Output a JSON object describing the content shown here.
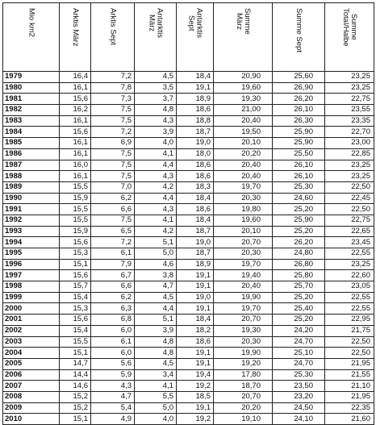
{
  "table": {
    "headers": [
      "Mio km2",
      "Arktis März",
      "Arktis Sept",
      "Antarktis\nMärz",
      "Antarktis\nSept",
      "Summe\nMärz",
      "Summe Sept",
      "Summe\nTotal/Halbe"
    ],
    "rows": [
      [
        "1979",
        "16,4",
        "7,2",
        "4,5",
        "18,4",
        "20,90",
        "25,60",
        "23,25"
      ],
      [
        "1980",
        "16,1",
        "7,8",
        "3,5",
        "19,1",
        "19,60",
        "26,90",
        "23,25"
      ],
      [
        "1981",
        "15,6",
        "7,3",
        "3,7",
        "18,9",
        "19,30",
        "26,20",
        "22,75"
      ],
      [
        "1982",
        "16,2",
        "7,5",
        "4,8",
        "18,6",
        "21,00",
        "26,10",
        "23,55"
      ],
      [
        "1983",
        "16,1",
        "7,5",
        "4,3",
        "18,8",
        "20,40",
        "26,30",
        "23,35"
      ],
      [
        "1984",
        "15,6",
        "7,2",
        "3,9",
        "18,7",
        "19,50",
        "25,90",
        "22,70"
      ],
      [
        "1985",
        "16,1",
        "6,9",
        "4,0",
        "19,0",
        "20,10",
        "25,90",
        "23,00"
      ],
      [
        "1986",
        "16,1",
        "7,5",
        "4,1",
        "18,0",
        "20,20",
        "25,50",
        "22,85"
      ],
      [
        "1987",
        "16,0",
        "7,5",
        "4,4",
        "18,6",
        "20,40",
        "26,10",
        "23,25"
      ],
      [
        "1988",
        "16,1",
        "7,5",
        "4,3",
        "18,6",
        "20,40",
        "26,10",
        "23,25"
      ],
      [
        "1989",
        "15,5",
        "7,0",
        "4,2",
        "18,3",
        "19,70",
        "25,30",
        "22,50"
      ],
      [
        "1990",
        "15,9",
        "6,2",
        "4,4",
        "18,4",
        "20,30",
        "24,60",
        "22,45"
      ],
      [
        "1991",
        "15,5",
        "6,6",
        "4,3",
        "18,6",
        "19,80",
        "25,20",
        "22,50"
      ],
      [
        "1992",
        "15,5",
        "7,5",
        "4,1",
        "18,4",
        "19,60",
        "25,90",
        "22,75"
      ],
      [
        "1993",
        "15,9",
        "6,5",
        "4,2",
        "18,7",
        "20,10",
        "25,20",
        "22,65"
      ],
      [
        "1994",
        "15,6",
        "7,2",
        "5,1",
        "19,0",
        "20,70",
        "26,20",
        "23,45"
      ],
      [
        "1995",
        "15,3",
        "6,1",
        "5,0",
        "18,7",
        "20,30",
        "24,80",
        "22,55"
      ],
      [
        "1996",
        "15,1",
        "7,9",
        "4,6",
        "18,9",
        "19,70",
        "26,80",
        "23,25"
      ],
      [
        "1997",
        "15,6",
        "6,7",
        "3,8",
        "19,1",
        "19,40",
        "25,80",
        "22,60"
      ],
      [
        "1998",
        "15,7",
        "6,6",
        "4,7",
        "19,1",
        "20,40",
        "25,70",
        "23,05"
      ],
      [
        "1999",
        "15,4",
        "6,2",
        "4,5",
        "19,0",
        "19,90",
        "25,20",
        "22,55"
      ],
      [
        "2000",
        "15,3",
        "6,3",
        "4,4",
        "19,1",
        "19,70",
        "25,40",
        "22,55"
      ],
      [
        "2001",
        "15,6",
        "6,8",
        "5,1",
        "18,4",
        "20,70",
        "25,20",
        "22,95"
      ],
      [
        "2002",
        "15,4",
        "6,0",
        "3,9",
        "18,2",
        "19,30",
        "24,20",
        "21,75"
      ],
      [
        "2003",
        "15,5",
        "6,1",
        "4,8",
        "18,6",
        "20,30",
        "24,70",
        "22,50"
      ],
      [
        "2004",
        "15,1",
        "6,0",
        "4,8",
        "19,1",
        "19,90",
        "25,10",
        "22,50"
      ],
      [
        "2005",
        "14,7",
        "5,6",
        "4,5",
        "19,1",
        "19,20",
        "24,70",
        "21,95"
      ],
      [
        "2006",
        "14,4",
        "5,9",
        "3,4",
        "19,4",
        "17,80",
        "25,30",
        "21,55"
      ],
      [
        "2007",
        "14,6",
        "4,3",
        "4,1",
        "19,2",
        "18,70",
        "23,50",
        "21,10"
      ],
      [
        "2008",
        "15,2",
        "4,7",
        "5,5",
        "18,5",
        "20,70",
        "23,20",
        "21,95"
      ],
      [
        "2009",
        "15,2",
        "5,4",
        "5,0",
        "19,1",
        "20,20",
        "24,50",
        "22,35"
      ],
      [
        "2010",
        "15,1",
        "4,9",
        "4,0",
        "19,2",
        "19,10",
        "24,10",
        "21,60"
      ]
    ]
  }
}
